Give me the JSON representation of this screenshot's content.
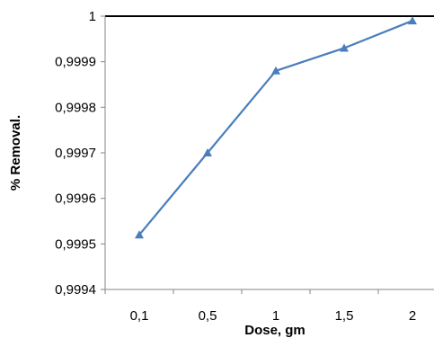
{
  "chart_data": {
    "type": "line",
    "xlabel": "Dose, gm",
    "ylabel": "% Removal.",
    "categories": [
      "0,1",
      "0,5",
      "1",
      "1,5",
      "2"
    ],
    "series": [
      {
        "values": [
          0.99952,
          0.9997,
          0.99988,
          0.99993,
          0.99999
        ]
      }
    ],
    "ylim": [
      0.9994,
      1.0
    ],
    "yticks": [
      {
        "value": 0.9994,
        "label": "0,9994"
      },
      {
        "value": 0.9995,
        "label": "0,9995"
      },
      {
        "value": 0.9996,
        "label": "0,9996"
      },
      {
        "value": 0.9997,
        "label": "0,9997"
      },
      {
        "value": 0.9998,
        "label": "0,9998"
      },
      {
        "value": 0.9999,
        "label": "0,9999"
      },
      {
        "value": 1.0,
        "label": "1"
      }
    ],
    "grid": false,
    "legend": "none",
    "marker": "triangle",
    "colors": {
      "series": "#4a7ebb",
      "axis": "#000000",
      "top_border": "#000000"
    }
  }
}
